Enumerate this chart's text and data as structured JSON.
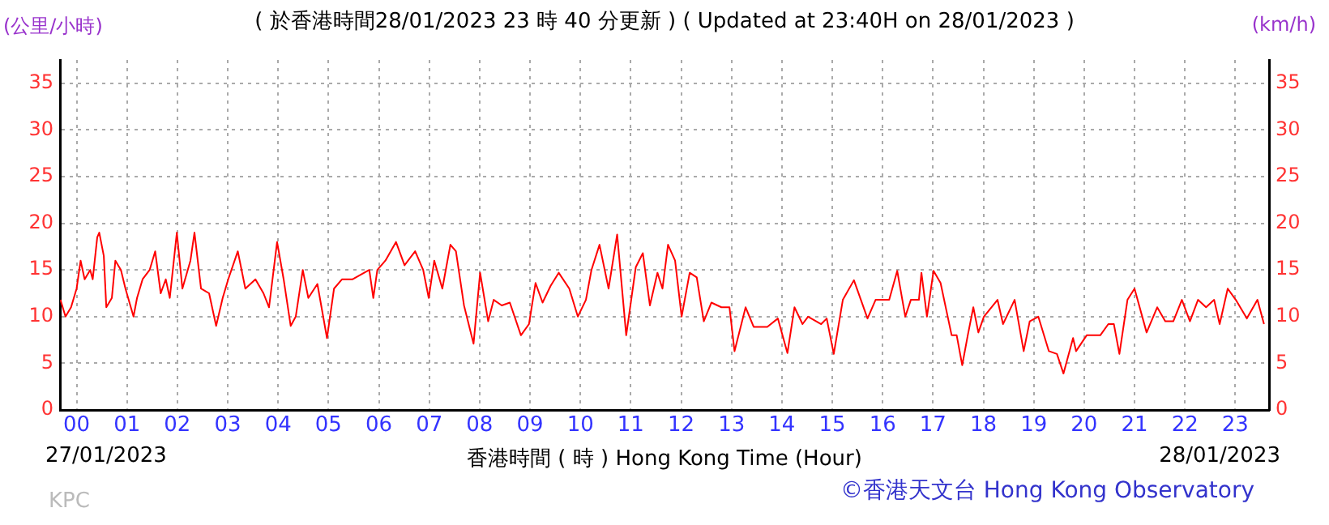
{
  "chart_data": {
    "type": "line",
    "title": "( 於香港時間28/01/2023 23 時 40 分更新 ) ( Updated at 23:40H on 28/01/2023 )",
    "xlabel": "香港時間 ( 時 )  Hong Kong Time (Hour)",
    "ylabel": "(公里/小時)",
    "y2label": "(km/h)",
    "annotations": [
      "27/01/2023",
      "28/01/2023",
      "©香港天文台 Hong Kong Observatory",
      "KPC"
    ],
    "x": [
      -0.32,
      -0.22,
      -0.11,
      0,
      0.08,
      0.16,
      0.27,
      0.32,
      0.41,
      0.45,
      0.54,
      0.59,
      0.7,
      0.77,
      0.88,
      0.97,
      1.13,
      1.2,
      1.31,
      1.45,
      1.56,
      1.67,
      1.77,
      1.85,
      1.99,
      2.1,
      2.26,
      2.34,
      2.47,
      2.63,
      2.77,
      2.9,
      3.01,
      3.2,
      3.35,
      3.55,
      3.71,
      3.82,
      3.98,
      4.11,
      4.25,
      4.35,
      4.49,
      4.6,
      4.78,
      4.97,
      5.11,
      5.27,
      5.48,
      5.81,
      5.89,
      5.97,
      6.13,
      6.34,
      6.51,
      6.72,
      6.88,
      6.99,
      7.1,
      7.26,
      7.42,
      7.53,
      7.69,
      7.88,
      8.01,
      8.17,
      8.28,
      8.44,
      8.6,
      8.82,
      8.98,
      9.11,
      9.25,
      9.41,
      9.57,
      9.78,
      9.95,
      10.11,
      10.22,
      10.38,
      10.56,
      10.73,
      10.91,
      11.1,
      11.24,
      11.38,
      11.53,
      11.63,
      11.74,
      11.88,
      12.01,
      12.17,
      12.31,
      12.45,
      12.6,
      12.8,
      12.96,
      13.06,
      13.28,
      13.44,
      13.71,
      13.92,
      14.11,
      14.25,
      14.41,
      14.52,
      14.78,
      14.89,
      15.03,
      15.21,
      15.43,
      15.7,
      15.86,
      16.13,
      16.29,
      16.45,
      16.56,
      16.72,
      16.77,
      16.88,
      17.01,
      17.15,
      17.37,
      17.47,
      17.58,
      17.69,
      17.8,
      17.9,
      18.01,
      18.28,
      18.39,
      18.62,
      18.8,
      18.92,
      19.09,
      19.3,
      19.46,
      19.59,
      19.78,
      19.84,
      20.05,
      20.32,
      20.48,
      20.59,
      20.7,
      20.86,
      21,
      21.24,
      21.45,
      21.61,
      21.77,
      21.94,
      22.1,
      22.26,
      22.42,
      22.58,
      22.69,
      22.85,
      23.01,
      23.23,
      23.44,
      23.57
    ],
    "series": [
      {
        "color": "#ff0000",
        "values": [
          11.8,
          10,
          11,
          13,
          16,
          14,
          15,
          14,
          18.5,
          19,
          16.5,
          11,
          12,
          16,
          15,
          13,
          10,
          12,
          14,
          15,
          17,
          12.5,
          14,
          12,
          19,
          13,
          16,
          19,
          13,
          12.5,
          9,
          12,
          14,
          17,
          13,
          14,
          12.5,
          11,
          18,
          14,
          9,
          10,
          15,
          12,
          13.5,
          7.7,
          13,
          14,
          14,
          15,
          12,
          15,
          16,
          18,
          15.5,
          17,
          15,
          12,
          16,
          13,
          17.7,
          17,
          11.2,
          7.1,
          14.7,
          9.5,
          11.8,
          11.2,
          11.5,
          8,
          9.2,
          13.6,
          11.5,
          13.3,
          14.7,
          13,
          10,
          11.8,
          15,
          17.7,
          13,
          18.8,
          8,
          15.3,
          16.8,
          11.2,
          14.7,
          13,
          17.7,
          16,
          10,
          14.7,
          14.2,
          9.5,
          11.5,
          11,
          11,
          6.3,
          11,
          8.9,
          8.9,
          9.8,
          6.1,
          11,
          9.2,
          10,
          9.2,
          9.8,
          6,
          11.8,
          13.9,
          9.8,
          11.8,
          11.8,
          14.9,
          10,
          11.8,
          11.8,
          14.7,
          10,
          14.9,
          13.6,
          8,
          8,
          4.8,
          8,
          11,
          8.3,
          10,
          11.8,
          9.2,
          11.8,
          6.3,
          9.5,
          10,
          6.3,
          6,
          3.9,
          7.7,
          6.3,
          8,
          8,
          9.2,
          9.2,
          6,
          11.8,
          13,
          8.3,
          11,
          9.5,
          9.5,
          11.8,
          9.5,
          11.8,
          11,
          11.8,
          9.2,
          13,
          11.8,
          9.8,
          11.8,
          9.2
        ]
      }
    ],
    "xlim": [
      -0.33,
      23.67
    ],
    "xticks": [
      {
        "value": 0,
        "label": "00"
      },
      {
        "value": 1,
        "label": "01"
      },
      {
        "value": 2,
        "label": "02"
      },
      {
        "value": 3,
        "label": "03"
      },
      {
        "value": 4,
        "label": "04"
      },
      {
        "value": 5,
        "label": "05"
      },
      {
        "value": 6,
        "label": "06"
      },
      {
        "value": 7,
        "label": "07"
      },
      {
        "value": 8,
        "label": "08"
      },
      {
        "value": 9,
        "label": "09"
      },
      10,
      11,
      12,
      13,
      14,
      15,
      16,
      17,
      18,
      19,
      20,
      21,
      22,
      23
    ],
    "ylim": [
      0,
      37.5
    ],
    "yticks": [
      {
        "value": 0,
        "label": "0"
      },
      {
        "value": 5,
        "label": "5"
      },
      10,
      15,
      20,
      25,
      30,
      35
    ],
    "y2lim": [
      0,
      37.5
    ],
    "y2ticks": [
      {
        "value": 0,
        "label": "0"
      },
      {
        "value": 5,
        "label": "5"
      },
      10,
      15,
      20,
      25,
      30,
      35
    ],
    "grid": true,
    "legend": false,
    "marker": "none",
    "line_style": "solid"
  }
}
